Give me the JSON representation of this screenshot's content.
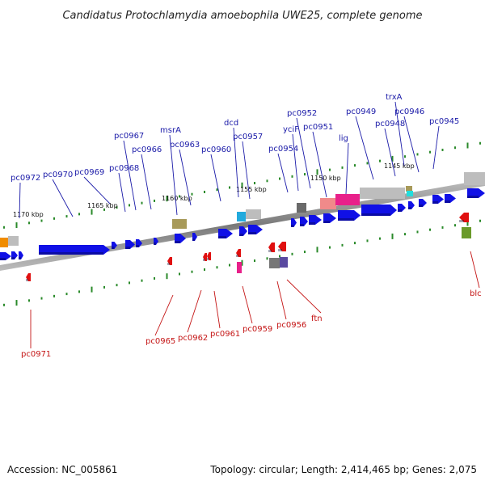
{
  "title": "Candidatus Protochlamydia amoebophila UWE25, complete genome",
  "footer": {
    "accession": "Accession: NC_005861",
    "topology": "Topology: circular; Length: 2,414,465 bp; Genes: 2,075"
  },
  "colors": {
    "forward_gene": "#1010e6",
    "reverse_gene": "#e01010",
    "label_forward": "#1a1aa8",
    "label_reverse": "#c41414",
    "tick": "#2a8a2a"
  },
  "scale_labels": [
    "1170 kbp",
    "1165 kbp",
    "1160 kbp",
    "1155 kbp",
    "1150 kbp",
    "1145 kbp"
  ],
  "forward_labels": [
    "pc0972",
    "pc0970",
    "pc0969",
    "pc0968",
    "pc0967",
    "pc0966",
    "msrA",
    "pc0963",
    "pc0960",
    "dcd",
    "pc0957",
    "pc0954",
    "yciF",
    "pc0952",
    "pc0951",
    "lig",
    "pc0949",
    "pc0948",
    "trxA",
    "pc0946",
    "pc0945"
  ],
  "reverse_labels": [
    "pc0971",
    "pc0965",
    "pc0962",
    "pc0961",
    "pc0959",
    "pc0956",
    "ftn",
    "blc"
  ]
}
